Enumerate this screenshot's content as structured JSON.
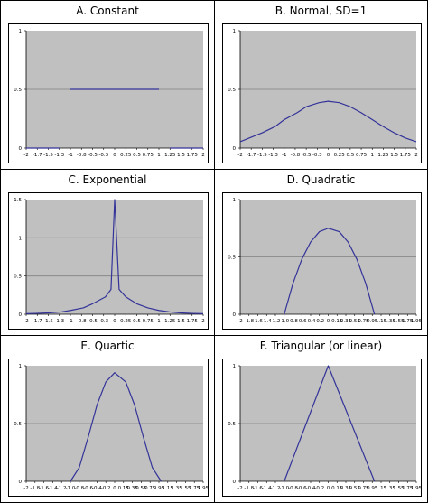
{
  "colors": {
    "plot_bg": "#c0c0c0",
    "line": "#333399",
    "grid": "#808080"
  },
  "chart_data": [
    {
      "type": "line",
      "title": "A. Constant",
      "x": [
        -2,
        -1.7,
        -1.5,
        -1.3,
        -1.0,
        -0.8,
        -0.5,
        -0.3,
        0,
        0.25,
        0.5,
        0.75,
        1.0,
        1.25,
        1.5,
        1.75,
        2
      ],
      "xticks": [
        "-2",
        "-1.7",
        "-1.5",
        "-1.3",
        "-1",
        "-0.8",
        "-0.5",
        "-0.3",
        "0",
        "0.25",
        "0.5",
        "0.75",
        "1",
        "1.25",
        "1.5",
        "1.75",
        "2"
      ],
      "ylim": [
        0,
        1
      ],
      "yticks": [
        "0",
        "0.5",
        "1"
      ],
      "grid": true,
      "series": [
        {
          "x": [
            -2,
            -1.3
          ],
          "y": [
            0,
            0
          ]
        },
        {
          "x": [
            -1,
            1
          ],
          "y": [
            0.5,
            0.5
          ]
        },
        {
          "x": [
            1.25,
            2
          ],
          "y": [
            0,
            0
          ]
        }
      ]
    },
    {
      "type": "line",
      "title": "B. Normal, SD=1",
      "x": [
        -2,
        -1.7,
        -1.5,
        -1.3,
        -1.0,
        -0.8,
        -0.5,
        -0.3,
        0,
        0.25,
        0.5,
        0.75,
        1.0,
        1.25,
        1.5,
        1.75,
        2
      ],
      "xticks": [
        "-2",
        "-1.7",
        "-1.5",
        "-1.3",
        "-1",
        "-0.8",
        "-0.5",
        "-0.3",
        "0",
        "0.25",
        "0.5",
        "0.75",
        "1",
        "1.25",
        "1.5",
        "1.75",
        "2"
      ],
      "ylim": [
        0,
        1
      ],
      "yticks": [
        "0",
        "0.5",
        "1"
      ],
      "grid": true,
      "series": [
        {
          "x": [
            -2,
            -1.75,
            -1.5,
            -1.25,
            -1,
            -0.75,
            -0.5,
            -0.25,
            0,
            0.25,
            0.5,
            0.75,
            1,
            1.25,
            1.5,
            1.75,
            2
          ],
          "y": [
            0.054,
            0.086,
            0.13,
            0.183,
            0.242,
            0.301,
            0.352,
            0.387,
            0.399,
            0.387,
            0.352,
            0.301,
            0.242,
            0.183,
            0.13,
            0.086,
            0.054
          ]
        }
      ]
    },
    {
      "type": "line",
      "title": "C. Exponential",
      "x": [
        -2,
        -1.7,
        -1.5,
        -1.3,
        -1.0,
        -0.8,
        -0.5,
        -0.3,
        0,
        0.25,
        0.5,
        0.75,
        1.0,
        1.25,
        1.5,
        1.75,
        2
      ],
      "xticks": [
        "-2",
        "-1.7",
        "-1.5",
        "-1.3",
        "-1",
        "-0.8",
        "-0.5",
        "-0.3",
        "0",
        "0.25",
        "0.5",
        "0.75",
        "1",
        "1.25",
        "1.5",
        "1.75",
        "2"
      ],
      "ylim": [
        0,
        1.5
      ],
      "yticks": [
        "0",
        "0.5",
        "1",
        "1.5"
      ],
      "grid": true,
      "series": [
        {
          "x": [
            -2,
            -1.75,
            -1.5,
            -1.25,
            -1,
            -0.75,
            -0.5,
            -0.25,
            -0.1,
            0,
            0.1,
            0.25,
            0.5,
            0.75,
            1,
            1.25,
            1.5,
            1.75,
            2
          ],
          "y": [
            0.007,
            0.011,
            0.018,
            0.03,
            0.05,
            0.083,
            0.137,
            0.227,
            0.325,
            1.5,
            0.325,
            0.227,
            0.137,
            0.083,
            0.05,
            0.03,
            0.018,
            0.011,
            0.007
          ]
        }
      ]
    },
    {
      "type": "line",
      "title": "D. Quadratic",
      "x": [
        -2,
        -1.8,
        -1.6,
        -1.4,
        -1.2,
        -1.0,
        -0.8,
        -0.6,
        -0.4,
        -0.2,
        0,
        0.15,
        0.35,
        0.55,
        0.75,
        0.95,
        1.15,
        1.35,
        1.55,
        1.75,
        1.95
      ],
      "xticks": [
        "-2",
        "-1.8",
        "-1.6",
        "-1.4",
        "-1.2",
        "-1.0",
        "-0.8",
        "-0.6",
        "-0.4",
        "-0.2",
        "0",
        "0.15",
        "0.35",
        "0.55",
        "0.75",
        "0.95",
        "1.15",
        "1.35",
        "1.55",
        "1.75",
        "1.95"
      ],
      "ylim": [
        0,
        1
      ],
      "yticks": [
        "0",
        "0.5",
        "1"
      ],
      "grid": true,
      "series": [
        {
          "x": [
            -1,
            -0.8,
            -0.6,
            -0.4,
            -0.2,
            0,
            0.2,
            0.4,
            0.6,
            0.8,
            1
          ],
          "y": [
            0,
            0.27,
            0.48,
            0.63,
            0.72,
            0.75,
            0.72,
            0.63,
            0.48,
            0.27,
            0
          ]
        }
      ]
    },
    {
      "type": "line",
      "title": "E. Quartic",
      "x": [
        -2,
        -1.8,
        -1.6,
        -1.4,
        -1.2,
        -1.0,
        -0.8,
        -0.6,
        -0.4,
        -0.2,
        0,
        0.15,
        0.35,
        0.55,
        0.75,
        0.95,
        1.15,
        1.35,
        1.55,
        1.75,
        1.95
      ],
      "xticks": [
        "-2",
        "-1.8",
        "-1.6",
        "-1.4",
        "-1.2",
        "-1.0",
        "-0.8",
        "-0.6",
        "-0.4",
        "-0.2",
        "0",
        "0.15",
        "0.35",
        "0.55",
        "0.75",
        "0.95",
        "1.15",
        "1.35",
        "1.55",
        "1.75",
        "1.95"
      ],
      "ylim": [
        0,
        1
      ],
      "yticks": [
        "0",
        "0.5",
        "1"
      ],
      "grid": true,
      "series": [
        {
          "x": [
            -1,
            -0.8,
            -0.6,
            -0.4,
            -0.2,
            0,
            0.2,
            0.4,
            0.6,
            0.8,
            1
          ],
          "y": [
            0,
            0.12,
            0.38,
            0.66,
            0.86,
            0.94,
            0.86,
            0.66,
            0.38,
            0.12,
            0
          ]
        }
      ]
    },
    {
      "type": "line",
      "title": "F. Triangular (or linear)",
      "x": [
        -2,
        -1.8,
        -1.6,
        -1.4,
        -1.2,
        -1.0,
        -0.8,
        -0.6,
        -0.4,
        -0.2,
        0,
        0.15,
        0.35,
        0.55,
        0.75,
        0.95,
        1.15,
        1.35,
        1.55,
        1.75,
        1.95
      ],
      "xticks": [
        "-2",
        "-1.8",
        "-1.6",
        "-1.4",
        "-1.2",
        "-1.0",
        "-0.8",
        "-0.6",
        "-0.4",
        "-0.2",
        "0",
        "0.15",
        "0.35",
        "0.55",
        "0.75",
        "0.95",
        "1.15",
        "1.35",
        "1.55",
        "1.75",
        "1.95"
      ],
      "ylim": [
        0,
        1
      ],
      "yticks": [
        "0",
        "0.5",
        "1"
      ],
      "grid": true,
      "series": [
        {
          "x": [
            -1,
            0,
            1
          ],
          "y": [
            0,
            1,
            0
          ]
        }
      ]
    }
  ]
}
